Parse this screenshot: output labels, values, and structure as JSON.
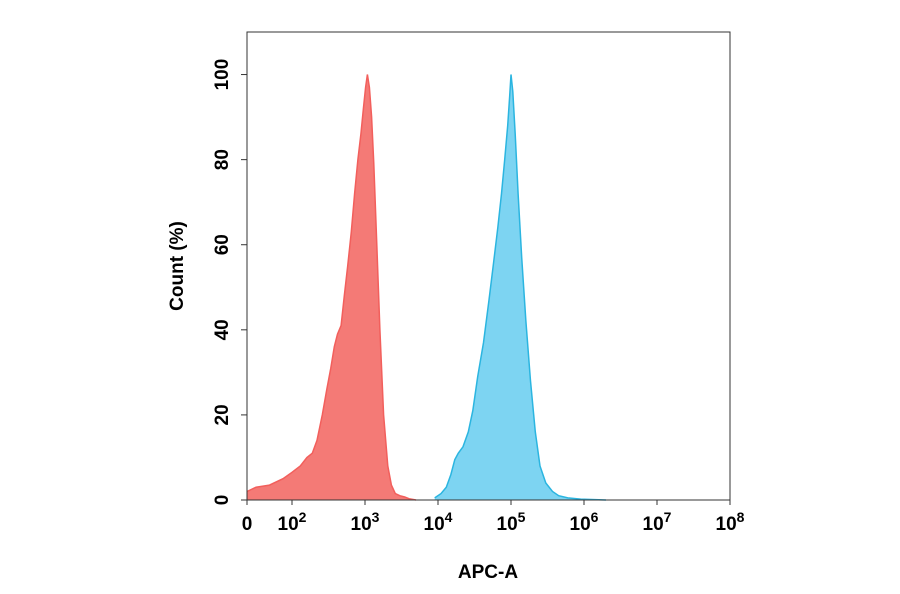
{
  "chart_data": {
    "type": "area",
    "title": "",
    "xlabel": "APC-A",
    "ylabel": "Count  (%)",
    "x_scale": "biexponential",
    "xlim": [
      0,
      100000000
    ],
    "ylim": [
      0,
      110
    ],
    "x_ticks": [
      {
        "value": 0,
        "base": "0",
        "exp": ""
      },
      {
        "value": 100,
        "base": "10",
        "exp": "2"
      },
      {
        "value": 1000,
        "base": "10",
        "exp": "3"
      },
      {
        "value": 10000,
        "base": "10",
        "exp": "4"
      },
      {
        "value": 100000,
        "base": "10",
        "exp": "5"
      },
      {
        "value": 1000000,
        "base": "10",
        "exp": "6"
      },
      {
        "value": 10000000,
        "base": "10",
        "exp": "7"
      },
      {
        "value": 100000000,
        "base": "10",
        "exp": "8"
      }
    ],
    "y_ticks": [
      0,
      20,
      40,
      60,
      80,
      100
    ],
    "grid": false,
    "legend": "none",
    "series": [
      {
        "color": "#f25f5c",
        "fill": "#f47a76",
        "x": [
          0,
          20,
          50,
          80,
          100,
          130,
          160,
          190,
          220,
          260,
          300,
          340,
          380,
          420,
          470,
          520,
          580,
          650,
          720,
          800,
          880,
          950,
          1020,
          1080,
          1150,
          1230,
          1320,
          1450,
          1600,
          1800,
          2050,
          2300,
          2600,
          3000,
          3500,
          4000,
          5000
        ],
        "y": [
          2,
          3,
          3.5,
          5,
          6.5,
          8,
          10,
          11,
          14,
          20,
          26,
          31,
          36,
          39,
          41,
          48,
          55,
          63,
          72,
          80,
          86,
          92,
          97,
          100,
          97,
          90,
          79,
          60,
          40,
          20,
          8,
          3.5,
          1.5,
          1,
          0.7,
          0.3,
          0
        ]
      },
      {
        "color": "#2bb5e0",
        "fill": "#7dd4f2",
        "x": [
          9000,
          11000,
          13000,
          15000,
          17000,
          19000,
          22000,
          26000,
          30000,
          35000,
          42000,
          50000,
          58000,
          66000,
          74000,
          82000,
          90000,
          96000,
          100000,
          106000,
          114000,
          125000,
          140000,
          160000,
          185000,
          215000,
          250000,
          300000,
          370000,
          450000,
          600000,
          900000,
          2000000
        ],
        "y": [
          0.5,
          1.5,
          3,
          6,
          9.5,
          11,
          12.5,
          16,
          21,
          29,
          37,
          47,
          56,
          64,
          72,
          80,
          88,
          95,
          100,
          96,
          86,
          72,
          57,
          42,
          28,
          16,
          8,
          4,
          2,
          1,
          0.5,
          0.2,
          0
        ]
      }
    ]
  }
}
